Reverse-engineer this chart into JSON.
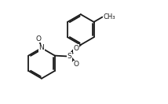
{
  "bg_color": "#ffffff",
  "line_color": "#1a1a1a",
  "line_width": 1.3,
  "font_size": 6.5,
  "fig_width": 2.14,
  "fig_height": 1.32,
  "dpi": 100,
  "xlim": [
    0.0,
    10.5
  ],
  "ylim": [
    0.5,
    6.5
  ]
}
